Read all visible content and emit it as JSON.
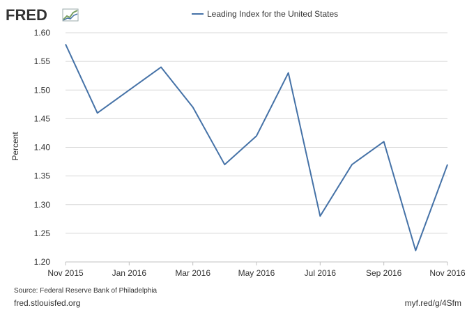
{
  "logo": {
    "text": "FRED"
  },
  "legend": {
    "label": "Leading Index for the United States"
  },
  "chart_data": {
    "type": "line",
    "ylabel": "Percent",
    "ylim": [
      1.2,
      1.6
    ],
    "y_ticks": [
      "1.20",
      "1.25",
      "1.30",
      "1.35",
      "1.40",
      "1.45",
      "1.50",
      "1.55",
      "1.60"
    ],
    "x_ticks": [
      "Nov 2015",
      "Jan 2016",
      "Mar 2016",
      "May 2016",
      "Jul 2016",
      "Sep 2016",
      "Nov 2016"
    ],
    "x": [
      "2015-11",
      "2015-12",
      "2016-01",
      "2016-02",
      "2016-03",
      "2016-04",
      "2016-05",
      "2016-06",
      "2016-07",
      "2016-08",
      "2016-09",
      "2016-10",
      "2016-11"
    ],
    "series": [
      {
        "name": "Leading Index for the United States",
        "values": [
          1.58,
          1.46,
          1.5,
          1.54,
          1.47,
          1.37,
          1.42,
          1.53,
          1.28,
          1.37,
          1.41,
          1.22,
          1.37
        ]
      }
    ],
    "line_color": "#4572a7",
    "grid": true,
    "legend_position": "top-center"
  },
  "footer": {
    "source": "Source: Federal Reserve Bank of Philadelphia",
    "left_url": "fred.stlouisfed.org",
    "right_url": "myf.red/g/4Sfm"
  }
}
